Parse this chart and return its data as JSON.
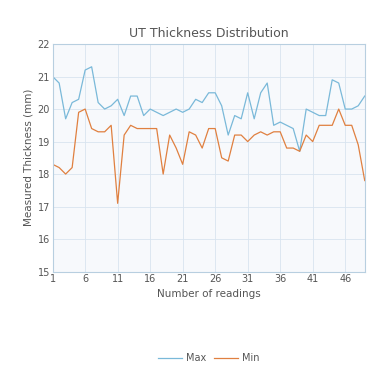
{
  "title": "UT Thickness Distribution",
  "xlabel": "Number of readings",
  "ylabel": "Measured Thickness (mm)",
  "ylim": [
    15,
    22
  ],
  "yticks": [
    15,
    16,
    17,
    18,
    19,
    20,
    21,
    22
  ],
  "xticks": [
    1,
    6,
    11,
    16,
    21,
    26,
    31,
    36,
    41,
    46
  ],
  "max_color": "#7ab9d9",
  "min_color": "#e08040",
  "max_data": [
    21.0,
    20.8,
    19.7,
    20.2,
    20.3,
    21.2,
    21.3,
    20.2,
    20.0,
    20.1,
    20.3,
    19.8,
    20.4,
    20.4,
    19.8,
    20.0,
    19.9,
    19.8,
    19.9,
    20.0,
    19.9,
    20.0,
    20.3,
    20.2,
    20.5,
    20.5,
    20.1,
    19.2,
    19.8,
    19.7,
    20.5,
    19.7,
    20.5,
    20.8,
    19.5,
    19.6,
    19.5,
    19.4,
    18.7,
    20.0,
    19.9,
    19.8,
    19.8,
    20.9,
    20.8,
    20.0,
    20.0,
    20.1,
    20.4
  ],
  "min_data": [
    18.3,
    18.2,
    18.0,
    18.2,
    19.9,
    20.0,
    19.4,
    19.3,
    19.3,
    19.5,
    17.1,
    19.2,
    19.5,
    19.4,
    19.4,
    19.4,
    19.4,
    18.0,
    19.2,
    18.8,
    18.3,
    19.3,
    19.2,
    18.8,
    19.4,
    19.4,
    18.5,
    18.4,
    19.2,
    19.2,
    19.0,
    19.2,
    19.3,
    19.2,
    19.3,
    19.3,
    18.8,
    18.8,
    18.7,
    19.2,
    19.0,
    19.5,
    19.5,
    19.5,
    20.0,
    19.5,
    19.5,
    18.9,
    17.8
  ],
  "background_color": "#ffffff",
  "plot_bg_color": "#f7f9fc",
  "grid_color": "#d8e4f0",
  "border_color": "#b8cfe0",
  "legend_labels": [
    "Max",
    "Min"
  ],
  "title_fontsize": 9,
  "label_fontsize": 7.5,
  "tick_fontsize": 7
}
